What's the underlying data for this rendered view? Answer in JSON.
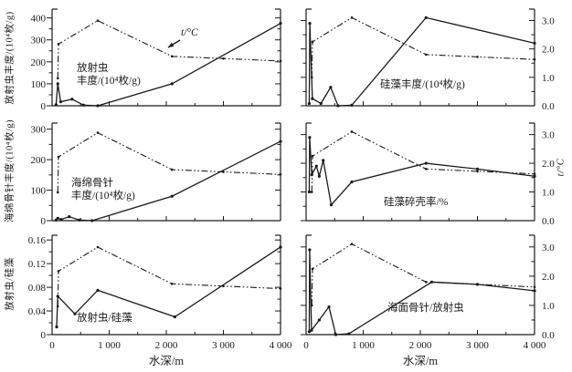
{
  "figure": {
    "kind": "scanned journal figure, 2x3 grid of line charts",
    "bg": "#ffffff",
    "ink": "#1a1a1a"
  },
  "chart_data": {
    "type": "line",
    "layout": "2 columns x 3 rows, shared x axis 0-4000 m, dash-dot temperature curve repeated in every panel",
    "xlabel": "水深/m",
    "x_range": [
      0,
      4000
    ],
    "x_tick_values": [
      0,
      1000,
      2000,
      3000,
      4000
    ],
    "x_ticks": [
      "0",
      "1 000",
      "2 000",
      "3 000",
      "4 000"
    ],
    "x_minor_step": 500,
    "right_axis_label": "t/°C",
    "right_axis_ticks": [
      "0.0",
      "1.0",
      "2.0",
      "3.0"
    ],
    "temperature_series": {
      "label": "t/°C",
      "style": "dash-dot",
      "x": [
        100,
        112,
        800,
        2100,
        3000,
        4000
      ],
      "celsius": [
        1.0,
        2.25,
        3.1,
        1.8,
        1.72,
        1.63
      ]
    },
    "panels": [
      {
        "id": "radiolarian-abundance",
        "pos": "top-left",
        "ylabel": "放射虫丰度/(10⁴枚/g)",
        "label_side": "left",
        "y_tick_values": [
          0,
          100,
          200,
          300,
          400
        ],
        "y_ticks": [
          "0",
          "100",
          "200",
          "300",
          "400"
        ],
        "y_minor": 50,
        "ylim": [
          0,
          440
        ],
        "t_scale": 125,
        "note_lines": [
          "放射虫",
          "丰度/(10⁴枚/g)"
        ],
        "temp_label": {
          "text": "t/°C",
          "ax1": 197,
          "ay1": 44,
          "ax2": 184,
          "ay2": 52
        },
        "show_x_labels": false,
        "series": {
          "x": [
            70,
            100,
            150,
            350,
            550,
            800,
            2100,
            4000
          ],
          "y": [
            5,
            100,
            18,
            30,
            3,
            0,
            100,
            375
          ]
        }
      },
      {
        "id": "diatom-abundance",
        "pos": "top-right",
        "ylabel": "",
        "label_side": "right",
        "y_tick_values": [
          0,
          1,
          2,
          3
        ],
        "y_ticks": [
          "0.0",
          "1.0",
          "2.0",
          "3.0"
        ],
        "y_minor": 0.5,
        "ylim": [
          0,
          3.4
        ],
        "t_scale": 1,
        "note_lines": [
          "硅藻丰度/(10⁴枚/g)"
        ],
        "show_x_labels": false,
        "series": {
          "x": [
            55,
            65,
            110,
            260,
            430,
            560,
            800,
            2100,
            4000
          ],
          "y": [
            0.08,
            2.9,
            0.25,
            0.08,
            0.65,
            0,
            0.02,
            3.1,
            2.2
          ]
        }
      },
      {
        "id": "sponge-spicule-abundance",
        "pos": "middle-left",
        "ylabel": "海绵骨针丰度/(10⁴枚/g)",
        "label_side": "left",
        "y_tick_values": [
          0,
          100,
          200,
          300
        ],
        "y_ticks": [
          "0",
          "100",
          "200",
          "300"
        ],
        "y_minor": 50,
        "ylim": [
          0,
          320
        ],
        "t_scale": 93,
        "note_lines": [
          "海绵骨针",
          "丰度/(10⁴枚/g)"
        ],
        "show_x_labels": false,
        "series": {
          "x": [
            70,
            100,
            160,
            300,
            480,
            700,
            2100,
            4000
          ],
          "y": [
            2,
            8,
            4,
            13,
            2,
            0,
            80,
            260
          ]
        }
      },
      {
        "id": "diatom-fragmentation-rate",
        "pos": "middle-right",
        "ylabel": "",
        "label_side": "right",
        "y_tick_values": [
          0,
          1,
          2,
          3
        ],
        "y_ticks": [
          "0.0",
          "1.0",
          "2.0",
          "3.0"
        ],
        "y_minor": 0.5,
        "ylim": [
          0,
          3.4
        ],
        "t_scale": 1,
        "note_lines": [
          "硅藻碎壳率/%"
        ],
        "show_x_labels": false,
        "series": {
          "x": [
            55,
            62,
            100,
            180,
            230,
            300,
            440,
            800,
            2100,
            3000,
            4000
          ],
          "y": [
            1.0,
            2.9,
            1.6,
            1.9,
            1.55,
            2.1,
            0.55,
            1.35,
            2.0,
            1.8,
            1.55
          ]
        }
      },
      {
        "id": "radiolarian-diatom-ratio",
        "pos": "bottom-left",
        "ylabel": "放射虫/硅藻",
        "label_side": "left",
        "y_tick_values": [
          0,
          0.04,
          0.08,
          0.12,
          0.16
        ],
        "y_ticks": [
          "0",
          "0.04",
          "0.08",
          "0.12",
          "0.16"
        ],
        "y_minor": 0.02,
        "ylim": [
          0,
          0.168
        ],
        "t_scale": 0.0477,
        "note_lines": [
          "放射虫/硅藻"
        ],
        "show_x_labels": true,
        "series": {
          "x": [
            80,
            100,
            400,
            800,
            2150,
            4000
          ],
          "y": [
            0.013,
            0.065,
            0.035,
            0.075,
            0.03,
            0.148
          ]
        }
      },
      {
        "id": "spicule-radiolarian-ratio",
        "pos": "bottom-right",
        "ylabel": "",
        "label_side": "right",
        "y_tick_values": [
          0,
          1,
          2,
          3
        ],
        "y_ticks": [
          "0.0",
          "1.0",
          "2.0",
          "3.0"
        ],
        "y_minor": 0.5,
        "ylim": [
          0,
          3.4
        ],
        "t_scale": 1,
        "note_lines": [
          "海面骨针/放射虫"
        ],
        "show_x_labels": true,
        "series": {
          "x": [
            55,
            62,
            95,
            230,
            400,
            520,
            750,
            2200,
            3000,
            4000
          ],
          "y": [
            0.1,
            2.9,
            0.15,
            0.5,
            0.95,
            0,
            0.03,
            1.8,
            1.72,
            1.5
          ]
        }
      }
    ]
  }
}
